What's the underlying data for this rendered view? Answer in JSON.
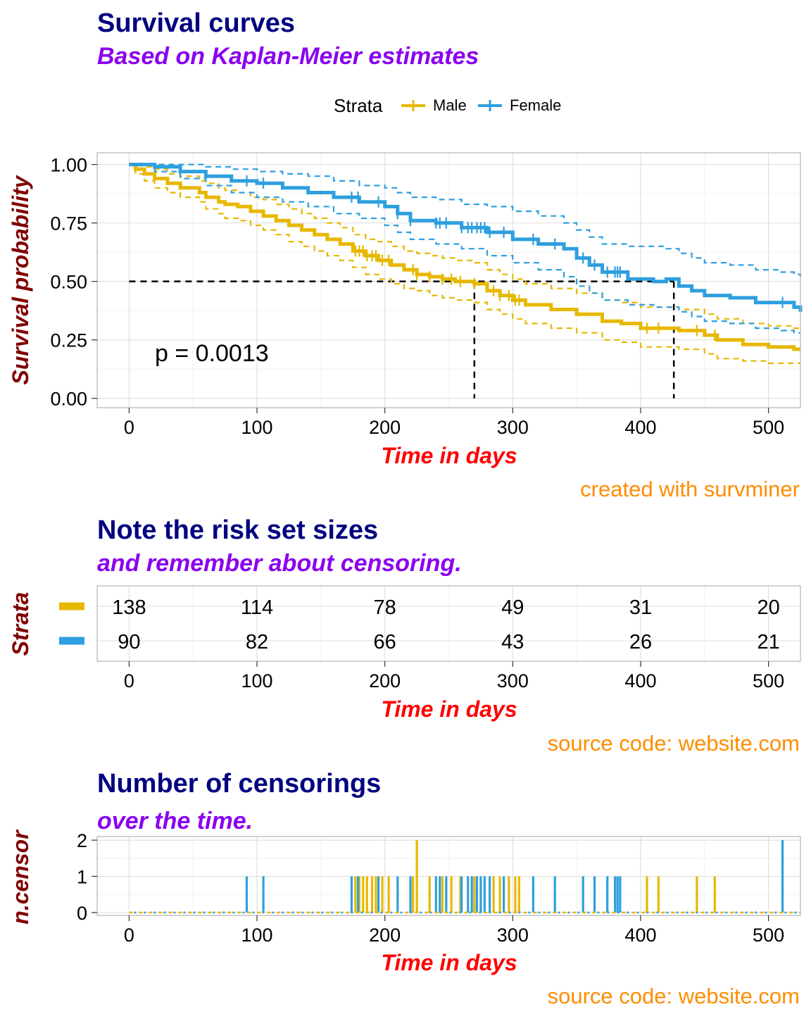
{
  "colors": {
    "male": "#E7B800",
    "female": "#2E9FDF",
    "title": "#000080",
    "subtitle": "#8B00EE",
    "xlabel": "#FF0000",
    "ylabel": "#800000",
    "caption": "#FF8C00"
  },
  "panels": {
    "survival": {
      "title": "Survival curves",
      "subtitle": "Based on Kaplan-Meier estimates",
      "ylabel": "Survival probability",
      "xlabel": "Time in days",
      "caption": "created with survminer",
      "pvalue": "p = 0.0013",
      "legend": {
        "title": "Strata",
        "labels": [
          "Male",
          "Female"
        ]
      },
      "xticks": [
        "0",
        "100",
        "200",
        "300",
        "400",
        "500"
      ],
      "yticks": [
        "0.00",
        "0.25",
        "0.50",
        "0.75",
        "1.00"
      ]
    },
    "risk": {
      "title": "Note the risk set sizes",
      "subtitle": "and remember about censoring.",
      "ylabel": "Strata",
      "xlabel": "Time in days",
      "caption": "source code: website.com",
      "xticks": [
        "0",
        "100",
        "200",
        "300",
        "400",
        "500"
      ]
    },
    "censor": {
      "title": "Number of censorings",
      "subtitle": "over the time.",
      "ylabel": "n.censor",
      "xlabel": "Time in days",
      "caption": "source code: website.com",
      "xticks": [
        "0",
        "100",
        "200",
        "300",
        "400",
        "500"
      ],
      "yticks": [
        "0",
        "1",
        "2"
      ]
    }
  },
  "chart_data": [
    {
      "type": "line",
      "title": "Survival curves",
      "subtitle": "Based on Kaplan-Meier estimates",
      "xlabel": "Time in days",
      "ylabel": "Survival probability",
      "xlim": [
        -25,
        525
      ],
      "ylim": [
        -0.04,
        1.05
      ],
      "median_survival": {
        "y": 0.5,
        "Male": 270,
        "Female": 426
      },
      "series": [
        {
          "name": "Male",
          "x": [
            0,
            5,
            12,
            20,
            30,
            40,
            55,
            60,
            70,
            75,
            85,
            95,
            105,
            115,
            125,
            135,
            145,
            155,
            165,
            175,
            185,
            195,
            205,
            215,
            225,
            235,
            245,
            255,
            270,
            280,
            290,
            300,
            310,
            330,
            350,
            370,
            385,
            400,
            430,
            450,
            460,
            480,
            500,
            520,
            525
          ],
          "y": [
            1.0,
            0.98,
            0.96,
            0.94,
            0.92,
            0.9,
            0.88,
            0.86,
            0.84,
            0.83,
            0.82,
            0.8,
            0.78,
            0.76,
            0.74,
            0.72,
            0.7,
            0.68,
            0.66,
            0.63,
            0.61,
            0.59,
            0.57,
            0.55,
            0.53,
            0.52,
            0.51,
            0.5,
            0.49,
            0.46,
            0.44,
            0.42,
            0.4,
            0.38,
            0.36,
            0.33,
            0.32,
            0.3,
            0.29,
            0.27,
            0.25,
            0.23,
            0.22,
            0.21,
            0.21
          ],
          "lower": [
            1.0,
            0.96,
            0.93,
            0.9,
            0.88,
            0.86,
            0.84,
            0.81,
            0.79,
            0.77,
            0.76,
            0.74,
            0.72,
            0.7,
            0.67,
            0.65,
            0.63,
            0.61,
            0.59,
            0.56,
            0.53,
            0.51,
            0.49,
            0.47,
            0.46,
            0.44,
            0.43,
            0.42,
            0.41,
            0.38,
            0.36,
            0.34,
            0.32,
            0.3,
            0.28,
            0.25,
            0.24,
            0.22,
            0.21,
            0.19,
            0.17,
            0.16,
            0.15,
            0.15,
            0.15
          ],
          "upper": [
            1.0,
            0.995,
            0.99,
            0.98,
            0.96,
            0.95,
            0.93,
            0.92,
            0.9,
            0.89,
            0.88,
            0.86,
            0.85,
            0.83,
            0.81,
            0.79,
            0.77,
            0.75,
            0.73,
            0.7,
            0.68,
            0.67,
            0.65,
            0.63,
            0.62,
            0.61,
            0.6,
            0.59,
            0.58,
            0.55,
            0.53,
            0.51,
            0.49,
            0.47,
            0.45,
            0.42,
            0.41,
            0.39,
            0.38,
            0.36,
            0.34,
            0.32,
            0.31,
            0.3,
            0.3
          ]
        },
        {
          "name": "Female",
          "x": [
            0,
            20,
            40,
            60,
            80,
            100,
            120,
            140,
            160,
            180,
            200,
            210,
            220,
            240,
            260,
            280,
            300,
            320,
            340,
            350,
            360,
            370,
            390,
            410,
            420,
            430,
            440,
            450,
            470,
            490,
            510,
            520,
            525
          ],
          "y": [
            1.0,
            0.99,
            0.97,
            0.95,
            0.93,
            0.92,
            0.9,
            0.88,
            0.86,
            0.84,
            0.82,
            0.79,
            0.76,
            0.75,
            0.73,
            0.71,
            0.68,
            0.66,
            0.64,
            0.6,
            0.57,
            0.54,
            0.51,
            0.5,
            0.51,
            0.48,
            0.46,
            0.44,
            0.43,
            0.41,
            0.41,
            0.39,
            0.37
          ],
          "lower": [
            1.0,
            0.97,
            0.94,
            0.91,
            0.88,
            0.86,
            0.84,
            0.82,
            0.79,
            0.77,
            0.74,
            0.71,
            0.68,
            0.66,
            0.64,
            0.61,
            0.58,
            0.55,
            0.52,
            0.48,
            0.45,
            0.42,
            0.4,
            0.39,
            0.39,
            0.37,
            0.35,
            0.33,
            0.32,
            0.3,
            0.29,
            0.28,
            0.28
          ],
          "upper": [
            1.0,
            1.0,
            1.0,
            0.99,
            0.98,
            0.97,
            0.96,
            0.95,
            0.93,
            0.91,
            0.9,
            0.88,
            0.86,
            0.85,
            0.83,
            0.82,
            0.8,
            0.78,
            0.75,
            0.72,
            0.69,
            0.66,
            0.65,
            0.65,
            0.64,
            0.62,
            0.6,
            0.58,
            0.57,
            0.55,
            0.54,
            0.53,
            0.52
          ]
        }
      ]
    },
    {
      "type": "table",
      "title": "Note the risk set sizes",
      "subtitle": "and remember about censoring.",
      "xlabel": "Time in days",
      "ylabel": "Strata",
      "x": [
        0,
        100,
        200,
        300,
        400,
        500
      ],
      "rows": [
        {
          "name": "Male",
          "values": [
            138,
            114,
            78,
            49,
            31,
            20
          ]
        },
        {
          "name": "Female",
          "values": [
            90,
            82,
            66,
            43,
            26,
            21
          ]
        }
      ]
    },
    {
      "type": "bar",
      "title": "Number of censorings",
      "subtitle": "over the time.",
      "xlabel": "Time in days",
      "ylabel": "n.censor",
      "ylim": [
        0,
        2
      ],
      "series": [
        {
          "name": "Male",
          "x": [
            177,
            180,
            183,
            186,
            190,
            193,
            198,
            203,
            222,
            225,
            235,
            245,
            252,
            259,
            270,
            285,
            290,
            297,
            302,
            305,
            405,
            414,
            444,
            458
          ],
          "counts": [
            1,
            1,
            1,
            1,
            1,
            1,
            1,
            1,
            1,
            2,
            1,
            1,
            1,
            1,
            1,
            1,
            1,
            1,
            1,
            1,
            1,
            1,
            1,
            1
          ]
        },
        {
          "name": "Female",
          "x": [
            92,
            105,
            174,
            179,
            195,
            210,
            220,
            240,
            243,
            248,
            260,
            265,
            268,
            272,
            275,
            278,
            282,
            293,
            316,
            333,
            355,
            364,
            374,
            380,
            382,
            384,
            511
          ],
          "counts": [
            1,
            1,
            1,
            1,
            1,
            1,
            1,
            1,
            1,
            1,
            1,
            1,
            1,
            1,
            1,
            1,
            1,
            1,
            1,
            1,
            1,
            1,
            1,
            1,
            1,
            1,
            2
          ]
        }
      ]
    }
  ]
}
